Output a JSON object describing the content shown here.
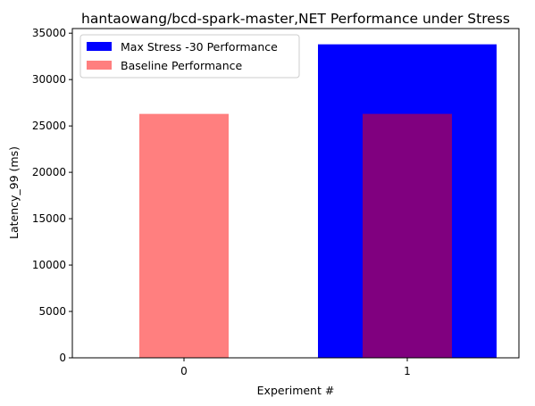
{
  "chart_data": {
    "type": "bar",
    "title": "hantaowang/bcd-spark-master,NET Performance under Stress",
    "xlabel": "Experiment #",
    "ylabel": "Latency_99 (ms)",
    "categories": [
      "0",
      "1"
    ],
    "ylim": [
      0,
      35500
    ],
    "yticks": [
      0,
      5000,
      10000,
      15000,
      20000,
      25000,
      30000,
      35000
    ],
    "grid": false,
    "legend_position": "top-left",
    "series": [
      {
        "name": "Max Stress -30 Performance",
        "color": "#0000ff",
        "opacity": 1.0,
        "bar_width": 0.8,
        "values": [
          null,
          33800
        ]
      },
      {
        "name": "Baseline Performance",
        "color": "#ff0000",
        "opacity": 0.5,
        "bar_width": 0.4,
        "values": [
          26300,
          26300
        ]
      }
    ]
  }
}
